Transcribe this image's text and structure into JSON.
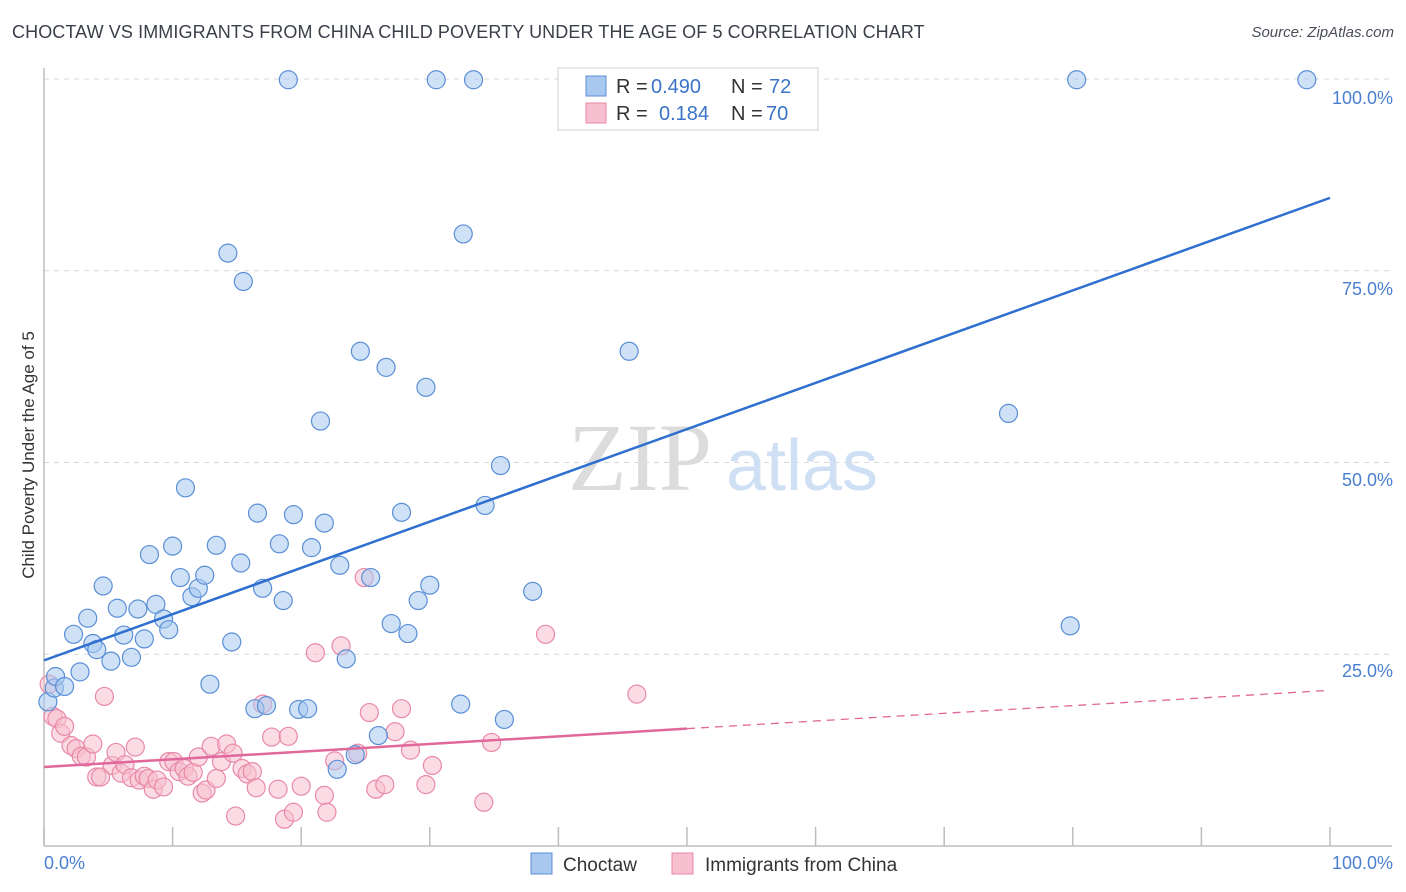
{
  "header": {
    "title": "CHOCTAW VS IMMIGRANTS FROM CHINA CHILD POVERTY UNDER THE AGE OF 5 CORRELATION CHART",
    "source": "Source: ZipAtlas.com"
  },
  "watermark": {
    "zip": "ZIP",
    "atlas": "atlas"
  },
  "legend": {
    "series": [
      {
        "r_label": "R = ",
        "r_value": "0.490",
        "n_label": "N = ",
        "n_value": "72"
      },
      {
        "r_label": "R = ",
        "r_value": "0.184",
        "n_label": "N = ",
        "n_value": "70"
      }
    ]
  },
  "bottom_legend": {
    "choctaw": "Choctaw",
    "china": "Immigrants from China"
  },
  "chart_data": {
    "type": "scatter",
    "title": "CHOCTAW VS IMMIGRANTS FROM CHINA CHILD POVERTY UNDER THE AGE OF 5 CORRELATION CHART",
    "xlabel": "",
    "ylabel": "Child Poverty Under the Age of 5",
    "xlim": [
      0,
      100
    ],
    "ylim": [
      0,
      100
    ],
    "x_tick_labels": [
      "0.0%",
      "100.0%"
    ],
    "y_tick_values": [
      25,
      50,
      75,
      100
    ],
    "y_tick_labels": [
      "25.0%",
      "50.0%",
      "75.0%",
      "100.0%"
    ],
    "grid": true,
    "colors": {
      "choctaw_fill": "#a8c8f0",
      "choctaw_stroke": "#5a8fd6",
      "choctaw_line": "#2e6fcf",
      "china_fill": "#f7bfd0",
      "china_stroke": "#e889a8",
      "china_line": "#e0689a",
      "grid": "#d9d9d9",
      "tick_text": "#4a7fd0"
    },
    "series": [
      {
        "name": "Choctaw",
        "r": 0.49,
        "n": 72,
        "trend": {
          "x": [
            0,
            100
          ],
          "y": [
            24.2,
            84.5
          ],
          "solid_to": 100
        },
        "points": [
          [
            0.3,
            18.8
          ],
          [
            0.8,
            20.6
          ],
          [
            0.9,
            22.1
          ],
          [
            1.6,
            20.8
          ],
          [
            2.3,
            27.6
          ],
          [
            2.8,
            22.7
          ],
          [
            3.4,
            29.7
          ],
          [
            3.8,
            26.4
          ],
          [
            4.1,
            25.6
          ],
          [
            4.6,
            33.9
          ],
          [
            5.2,
            24.1
          ],
          [
            5.7,
            31.0
          ],
          [
            6.2,
            27.5
          ],
          [
            6.8,
            24.6
          ],
          [
            7.3,
            30.9
          ],
          [
            7.8,
            27.0
          ],
          [
            8.2,
            38.0
          ],
          [
            8.7,
            31.5
          ],
          [
            9.3,
            29.6
          ],
          [
            9.7,
            28.2
          ],
          [
            10.0,
            39.1
          ],
          [
            10.6,
            35.0
          ],
          [
            11.0,
            46.7
          ],
          [
            11.5,
            32.5
          ],
          [
            12.0,
            33.6
          ],
          [
            12.5,
            35.3
          ],
          [
            12.9,
            21.1
          ],
          [
            13.4,
            39.2
          ],
          [
            14.3,
            77.3
          ],
          [
            14.6,
            26.6
          ],
          [
            15.3,
            36.9
          ],
          [
            15.5,
            73.6
          ],
          [
            16.4,
            17.9
          ],
          [
            16.6,
            43.4
          ],
          [
            17.0,
            33.6
          ],
          [
            17.3,
            18.3
          ],
          [
            18.3,
            39.4
          ],
          [
            18.6,
            32.0
          ],
          [
            19.0,
            99.9
          ],
          [
            19.4,
            43.2
          ],
          [
            19.8,
            17.8
          ],
          [
            20.5,
            17.9
          ],
          [
            20.8,
            38.9
          ],
          [
            21.5,
            55.4
          ],
          [
            21.8,
            42.1
          ],
          [
            22.8,
            10.0
          ],
          [
            23.0,
            36.6
          ],
          [
            23.5,
            24.4
          ],
          [
            24.2,
            11.9
          ],
          [
            24.6,
            64.5
          ],
          [
            25.4,
            35.0
          ],
          [
            26.0,
            14.4
          ],
          [
            26.6,
            62.4
          ],
          [
            27.0,
            29.0
          ],
          [
            27.8,
            43.5
          ],
          [
            28.3,
            27.7
          ],
          [
            29.1,
            32.0
          ],
          [
            29.7,
            59.8
          ],
          [
            30.0,
            34.0
          ],
          [
            30.5,
            99.9
          ],
          [
            32.4,
            18.5
          ],
          [
            32.6,
            79.8
          ],
          [
            33.4,
            99.9
          ],
          [
            35.5,
            49.6
          ],
          [
            34.3,
            44.4
          ],
          [
            35.8,
            16.5
          ],
          [
            38.0,
            33.2
          ],
          [
            45.5,
            64.5
          ],
          [
            75.0,
            56.4
          ],
          [
            79.8,
            28.7
          ],
          [
            80.3,
            99.9
          ],
          [
            98.2,
            99.9
          ]
        ]
      },
      {
        "name": "Immigrants from China",
        "r": 0.184,
        "n": 70,
        "trend": {
          "x": [
            0,
            100
          ],
          "y": [
            10.3,
            20.3
          ],
          "solid_to": 50
        },
        "points": [
          [
            0.4,
            21.1
          ],
          [
            0.7,
            16.9
          ],
          [
            1.0,
            16.6
          ],
          [
            1.3,
            14.7
          ],
          [
            1.6,
            15.6
          ],
          [
            2.1,
            13.1
          ],
          [
            2.5,
            12.7
          ],
          [
            2.9,
            11.7
          ],
          [
            3.3,
            11.6
          ],
          [
            3.8,
            13.3
          ],
          [
            4.1,
            9.0
          ],
          [
            4.4,
            9.0
          ],
          [
            4.7,
            19.5
          ],
          [
            5.3,
            10.5
          ],
          [
            5.6,
            12.2
          ],
          [
            6.0,
            9.5
          ],
          [
            6.3,
            10.6
          ],
          [
            6.8,
            8.9
          ],
          [
            7.1,
            12.9
          ],
          [
            7.4,
            8.6
          ],
          [
            7.8,
            9.1
          ],
          [
            8.1,
            8.8
          ],
          [
            8.5,
            7.4
          ],
          [
            8.8,
            8.6
          ],
          [
            9.3,
            7.7
          ],
          [
            9.7,
            11.0
          ],
          [
            10.1,
            11.0
          ],
          [
            10.5,
            9.7
          ],
          [
            10.9,
            10.1
          ],
          [
            11.2,
            9.1
          ],
          [
            11.6,
            9.6
          ],
          [
            12.0,
            11.6
          ],
          [
            12.3,
            6.9
          ],
          [
            12.6,
            7.3
          ],
          [
            13.0,
            13.0
          ],
          [
            13.4,
            8.8
          ],
          [
            13.8,
            11.0
          ],
          [
            14.2,
            13.3
          ],
          [
            14.7,
            12.1
          ],
          [
            14.9,
            3.9
          ],
          [
            15.4,
            10.1
          ],
          [
            15.8,
            9.4
          ],
          [
            16.2,
            9.7
          ],
          [
            16.5,
            7.6
          ],
          [
            17.0,
            18.5
          ],
          [
            17.7,
            14.2
          ],
          [
            18.2,
            7.4
          ],
          [
            18.7,
            3.5
          ],
          [
            19.0,
            14.3
          ],
          [
            19.4,
            4.4
          ],
          [
            20.0,
            7.8
          ],
          [
            21.1,
            25.2
          ],
          [
            21.8,
            6.6
          ],
          [
            22.0,
            4.4
          ],
          [
            22.6,
            11.1
          ],
          [
            23.1,
            26.1
          ],
          [
            24.4,
            12.1
          ],
          [
            24.9,
            35.0
          ],
          [
            25.3,
            17.4
          ],
          [
            25.8,
            7.4
          ],
          [
            26.5,
            8.0
          ],
          [
            27.3,
            14.9
          ],
          [
            27.8,
            17.9
          ],
          [
            28.5,
            12.5
          ],
          [
            29.7,
            8.0
          ],
          [
            30.2,
            10.5
          ],
          [
            34.2,
            5.7
          ],
          [
            34.8,
            13.5
          ],
          [
            39.0,
            27.6
          ],
          [
            46.1,
            19.8
          ]
        ]
      }
    ]
  }
}
